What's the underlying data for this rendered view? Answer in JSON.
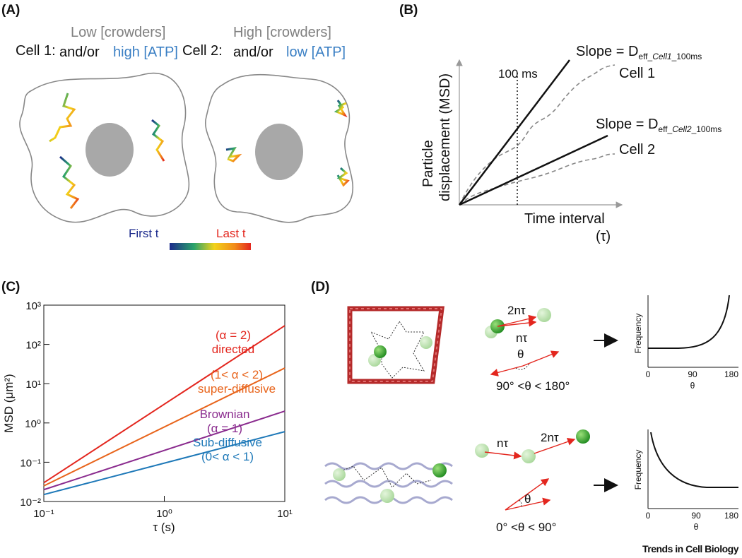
{
  "panel_labels": [
    "(A)",
    "(B)",
    "(C)",
    "(D)"
  ],
  "panel_a": {
    "cell1": {
      "label": "Cell 1:",
      "crowders": "Low [crowders]",
      "andor": "and/or",
      "atp": "high [ATP]"
    },
    "cell2": {
      "label": "Cell 2:",
      "crowders": "High [crowders]",
      "andor": "and/or",
      "atp": "low [ATP]"
    },
    "colorbar": {
      "first": "First t",
      "last": "Last t"
    }
  },
  "panel_b": {
    "marker": "100 ms",
    "slope1": {
      "prefix": "Slope = D",
      "sub_a": "eff_",
      "sub_b": "Cell1",
      "sub_c": "_100ms"
    },
    "slope2": {
      "prefix": "Slope =  D",
      "sub_a": "eff_",
      "sub_b": "Cell2",
      "sub_c": "_100ms"
    },
    "curve1": "Cell 1",
    "curve2": "Cell 2",
    "ylabel1": "Particle",
    "ylabel2": "displacement (MSD)",
    "xlabel": "Time interval",
    "xunit": "(τ)"
  },
  "chart_data": {
    "type": "line",
    "x_scale": "log",
    "y_scale": "log",
    "xlabel": "τ (s)",
    "ylabel": "MSD (μm²)",
    "xlim": [
      0.1,
      10
    ],
    "ylim": [
      0.01,
      1000
    ],
    "xticks": [
      {
        "value": 0.1,
        "label": "10⁻¹"
      },
      {
        "value": 1,
        "label": "10⁰"
      },
      {
        "value": 10,
        "label": "10¹"
      }
    ],
    "yticks": [
      {
        "value": 0.01,
        "label": "10⁻²"
      },
      {
        "value": 0.1,
        "label": "10⁻¹"
      },
      {
        "value": 1,
        "label": "10⁰"
      },
      {
        "value": 10,
        "label": "10¹"
      },
      {
        "value": 100,
        "label": "10²"
      },
      {
        "value": 1000,
        "label": "10³"
      }
    ],
    "series": [
      {
        "name": "directed",
        "annotation": "(α = 2)",
        "color": "#e3261e",
        "x": [
          0.1,
          10
        ],
        "values": [
          0.03,
          300
        ]
      },
      {
        "name": "super-diffusive",
        "annotation": "(1< α < 2)",
        "color": "#e8641b",
        "x": [
          0.1,
          10
        ],
        "values": [
          0.025,
          25
        ]
      },
      {
        "name": "Brownian",
        "annotation": "(α = 1)",
        "color": "#8a2b8e",
        "x": [
          0.1,
          10
        ],
        "values": [
          0.02,
          2
        ]
      },
      {
        "name": "Sub-diffusive",
        "annotation": "(0< α < 1)",
        "color": "#1d78b8",
        "x": [
          0.1,
          10
        ],
        "values": [
          0.015,
          0.6
        ]
      }
    ]
  },
  "panel_d": {
    "top": {
      "step2": "2nτ",
      "step1": "nτ",
      "angle": "θ",
      "range": "90° <θ < 180°",
      "ylabel": "Frequency",
      "xticks": [
        "0",
        "90",
        "180"
      ],
      "xlabel": "θ"
    },
    "bottom": {
      "step1": "nτ",
      "step2": "2nτ",
      "angle": "θ",
      "range": "0° <θ < 90°",
      "ylabel": "Frequency",
      "xticks": [
        "0",
        "90",
        "180"
      ],
      "xlabel": "θ"
    }
  },
  "footer": "Trends in Cell Biology"
}
